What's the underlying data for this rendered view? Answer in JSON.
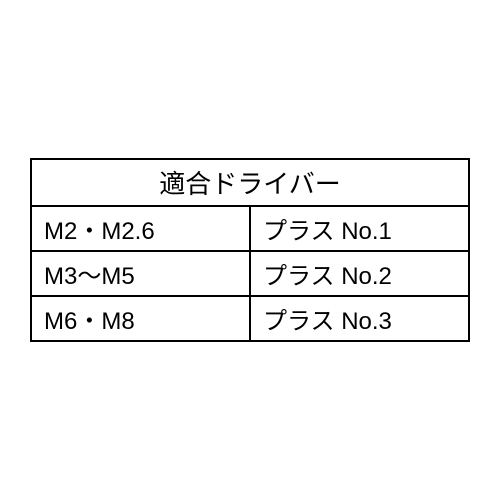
{
  "driver_table": {
    "type": "table",
    "header": "適合ドライバー",
    "columns": [
      "size",
      "driver"
    ],
    "rows": [
      [
        "M2・M2.6",
        "プラス No.1"
      ],
      [
        "M3〜M5",
        "プラス No.2"
      ],
      [
        "M6・M8",
        "プラス No.3"
      ]
    ],
    "border_color": "#000000",
    "background_color": "#ffffff",
    "header_fontsize": 26,
    "cell_fontsize": 24,
    "border_width": 2,
    "col_widths": [
      "50%",
      "50%"
    ]
  }
}
